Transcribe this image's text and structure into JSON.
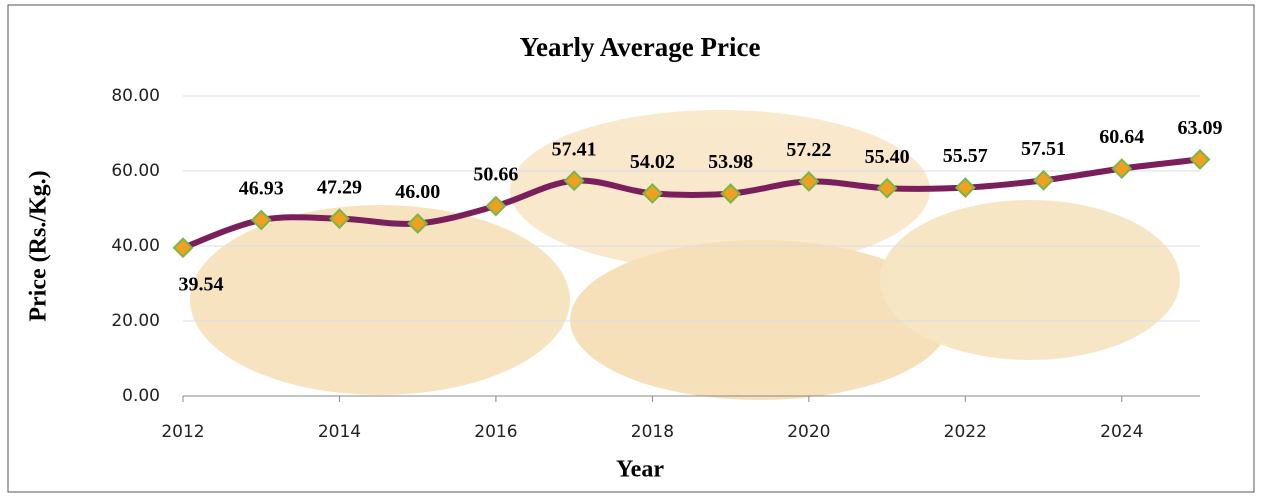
{
  "chart_data": {
    "type": "line",
    "title": "Yearly Average Price",
    "xlabel": "Year",
    "ylabel": "Price (Rs./Kg.)",
    "x": [
      2012,
      2013,
      2014,
      2015,
      2016,
      2017,
      2018,
      2019,
      2020,
      2021,
      2022,
      2023,
      2024,
      2025
    ],
    "series": [
      {
        "color": "#7a1f5c",
        "marker_color": "#f0a020",
        "values": [
          39.54,
          46.93,
          47.29,
          46.0,
          50.66,
          57.41,
          54.02,
          53.98,
          57.22,
          55.4,
          55.57,
          57.51,
          60.64,
          63.09
        ],
        "value_labels": [
          "39.54",
          "46.93",
          "47.29",
          "46.00",
          "50.66",
          "57.41",
          "54.02",
          "53.98",
          "57.22",
          "55.40",
          "55.57",
          "57.51",
          "60.64",
          "63.09"
        ]
      }
    ],
    "xlim": [
      2012,
      2025
    ],
    "xticks": [
      2012,
      2014,
      2016,
      2018,
      2020,
      2022,
      2024
    ],
    "ylim": [
      0,
      80
    ],
    "yticks": [
      {
        "value": 0,
        "label": "0.00"
      },
      {
        "value": 20,
        "label": "20.00"
      },
      {
        "value": 40,
        "label": "40.00"
      },
      {
        "value": 60,
        "label": "60.00"
      },
      {
        "value": 80,
        "label": "80.00"
      }
    ],
    "grid": true
  }
}
